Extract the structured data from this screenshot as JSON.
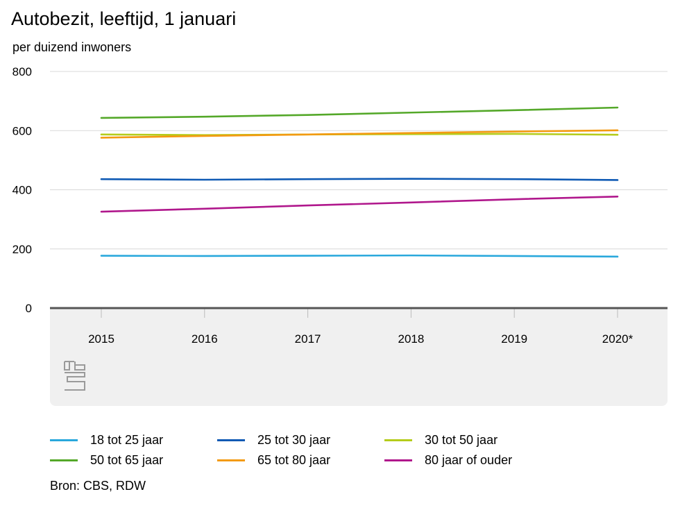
{
  "title": "Autobezit, leeftijd, 1 januari",
  "subtitle": "per duizend inwoners",
  "source": "Bron: CBS, RDW",
  "logo": "cbs-logo",
  "colors": {
    "axis": "#555555",
    "grid": "#d8d8d8",
    "band": "#f0f0f0"
  },
  "chart_data": {
    "type": "line",
    "title": "Autobezit, leeftijd, 1 januari",
    "ylabel": "per duizend inwoners",
    "xlabel": "",
    "categories": [
      "2015",
      "2016",
      "2017",
      "2018",
      "2019",
      "2020*"
    ],
    "ylim": [
      0,
      800
    ],
    "yticks": [
      0,
      200,
      400,
      600,
      800
    ],
    "grid": true,
    "legend_position": "bottom",
    "series": [
      {
        "name": "18 tot 25 jaar",
        "color": "#29a8dc",
        "values": [
          177,
          176,
          177,
          178,
          176,
          174
        ]
      },
      {
        "name": "25 tot 30 jaar",
        "color": "#0f5ab4",
        "values": [
          436,
          434,
          436,
          437,
          436,
          433
        ]
      },
      {
        "name": "30 tot 50 jaar",
        "color": "#b5cc1b",
        "values": [
          587,
          585,
          587,
          588,
          589,
          586
        ]
      },
      {
        "name": "50 tot 65 jaar",
        "color": "#54a829",
        "values": [
          643,
          647,
          653,
          661,
          669,
          678
        ]
      },
      {
        "name": "65 tot 80 jaar",
        "color": "#f39a12",
        "values": [
          576,
          582,
          587,
          592,
          597,
          601
        ]
      },
      {
        "name": "80 jaar of ouder",
        "color": "#b0178c",
        "values": [
          326,
          336,
          347,
          357,
          368,
          377
        ]
      }
    ]
  }
}
